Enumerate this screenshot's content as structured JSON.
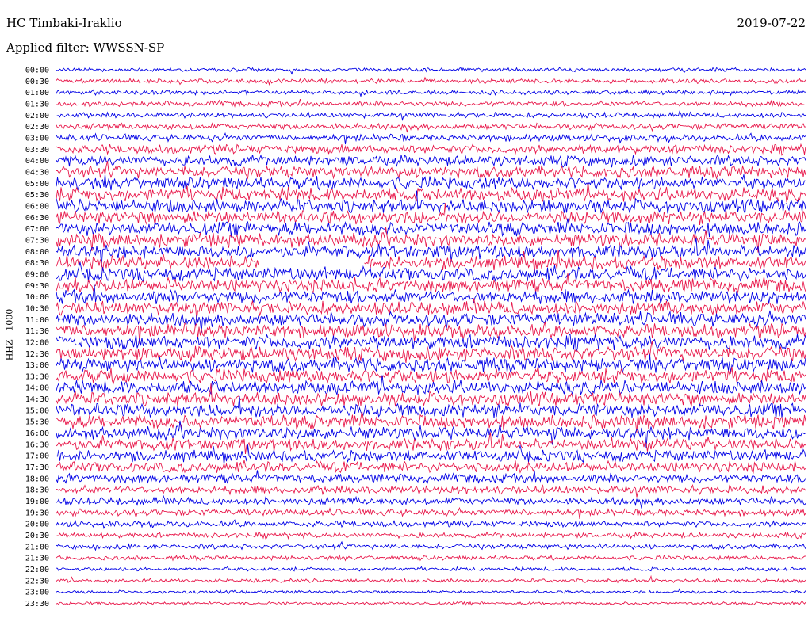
{
  "header": {
    "station": "HC Timbaki-Iraklio",
    "date": "2019-07-22",
    "filter": "Applied filter: WWSSN-SP"
  },
  "axis": {
    "channel_label": "HHZ - 1000"
  },
  "colors": {
    "blue": "#0000e6",
    "red": "#e8174a"
  },
  "chart_data": {
    "type": "line",
    "title": "HC Timbaki-Iraklio",
    "ylabel": "HHZ - 1000",
    "trace_colors_alternate": [
      "blue",
      "red"
    ],
    "rows": [
      "00:00",
      "00:30",
      "01:00",
      "01:30",
      "02:00",
      "02:30",
      "03:00",
      "03:30",
      "04:00",
      "04:30",
      "05:00",
      "05:30",
      "06:00",
      "06:30",
      "07:00",
      "07:30",
      "08:00",
      "08:30",
      "09:00",
      "09:30",
      "10:00",
      "10:30",
      "11:00",
      "11:30",
      "12:00",
      "12:30",
      "13:00",
      "13:30",
      "14:00",
      "14:30",
      "15:00",
      "15:30",
      "16:00",
      "16:30",
      "17:00",
      "17:30",
      "18:00",
      "18:30",
      "19:00",
      "19:30",
      "20:00",
      "20:30",
      "21:00",
      "21:30",
      "22:00",
      "22:30",
      "23:00",
      "23:30"
    ],
    "relative_noise_amplitude": [
      0.25,
      0.3,
      0.3,
      0.35,
      0.35,
      0.4,
      0.45,
      0.6,
      0.7,
      0.8,
      0.85,
      0.9,
      0.9,
      0.9,
      0.9,
      0.9,
      0.9,
      0.9,
      0.9,
      0.9,
      0.9,
      0.9,
      0.9,
      0.9,
      0.95,
      0.95,
      0.95,
      0.95,
      0.9,
      0.9,
      0.9,
      0.9,
      0.85,
      0.8,
      0.75,
      0.7,
      0.6,
      0.55,
      0.5,
      0.45,
      0.4,
      0.35,
      0.35,
      0.3,
      0.25,
      0.25,
      0.2,
      0.2
    ],
    "gap": {
      "row": "08:30",
      "start_fraction": 0.27,
      "end_fraction": 0.41
    }
  }
}
